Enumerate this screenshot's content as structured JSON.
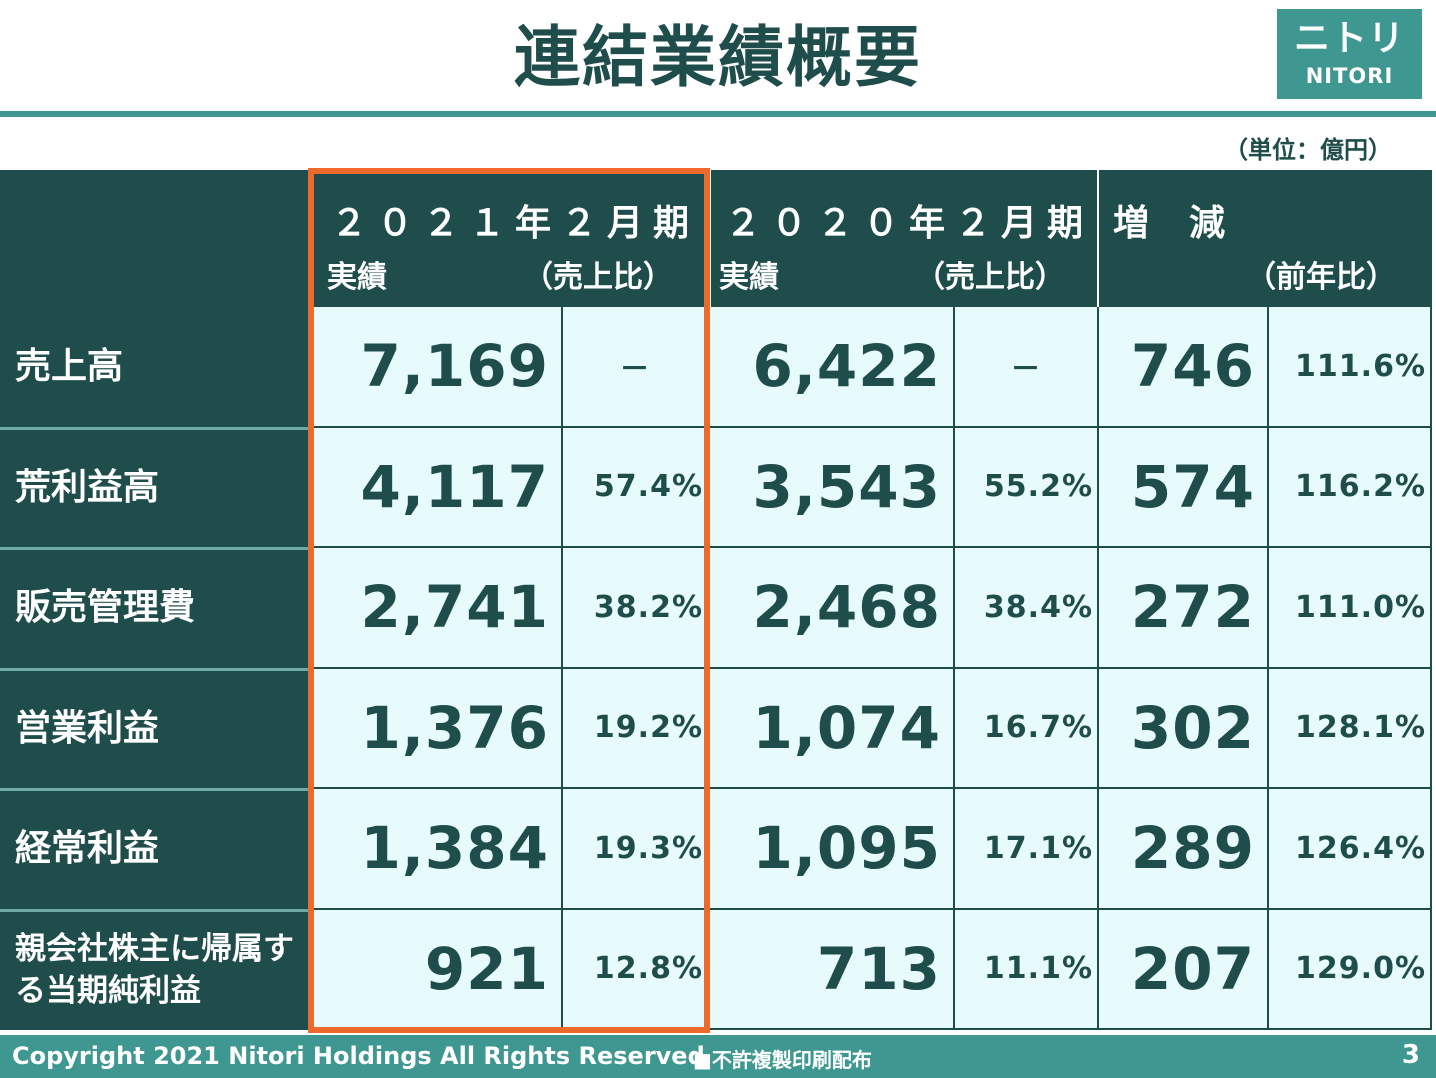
{
  "title": "連結業績概要",
  "logo": {
    "jp": "ニトリ",
    "en": "NITORI"
  },
  "unit": "（単位：億円）",
  "header": {
    "fy2021": {
      "line1": "２０２１年２月期",
      "left": "実績",
      "right": "（売上比）"
    },
    "fy2020": {
      "line1": "２０２０年２月期",
      "left": "実績",
      "right": "（売上比）"
    },
    "diff": {
      "line1": "増　減",
      "right": "（前年比）"
    }
  },
  "rows": [
    {
      "label": "売上高",
      "fy2021_value": "7,169",
      "fy2021_ratio": "－",
      "fy2020_value": "6,422",
      "fy2020_ratio": "－",
      "diff_value": "746",
      "diff_ratio": "111.6%"
    },
    {
      "label": "荒利益高",
      "fy2021_value": "4,117",
      "fy2021_ratio": "57.4%",
      "fy2020_value": "3,543",
      "fy2020_ratio": "55.2%",
      "diff_value": "574",
      "diff_ratio": "116.2%"
    },
    {
      "label": "販売管理費",
      "fy2021_value": "2,741",
      "fy2021_ratio": "38.2%",
      "fy2020_value": "2,468",
      "fy2020_ratio": "38.4%",
      "diff_value": "272",
      "diff_ratio": "111.0%"
    },
    {
      "label": "営業利益",
      "fy2021_value": "1,376",
      "fy2021_ratio": "19.2%",
      "fy2020_value": "1,074",
      "fy2020_ratio": "16.7%",
      "diff_value": "302",
      "diff_ratio": "128.1%"
    },
    {
      "label": "経常利益",
      "fy2021_value": "1,384",
      "fy2021_ratio": "19.3%",
      "fy2020_value": "1,095",
      "fy2020_ratio": "17.1%",
      "diff_value": "289",
      "diff_ratio": "126.4%"
    },
    {
      "label": "親会社株主に帰属する当期純利益",
      "fy2021_value": "921",
      "fy2021_ratio": "12.8%",
      "fy2020_value": "713",
      "fy2020_ratio": "11.1%",
      "diff_value": "207",
      "diff_ratio": "129.0%"
    }
  ],
  "footer": {
    "copyright": "Copyright 2021 Nitori Holdings All Rights Reserved",
    "note": "■不許複製印刷配布",
    "page": "3"
  }
}
